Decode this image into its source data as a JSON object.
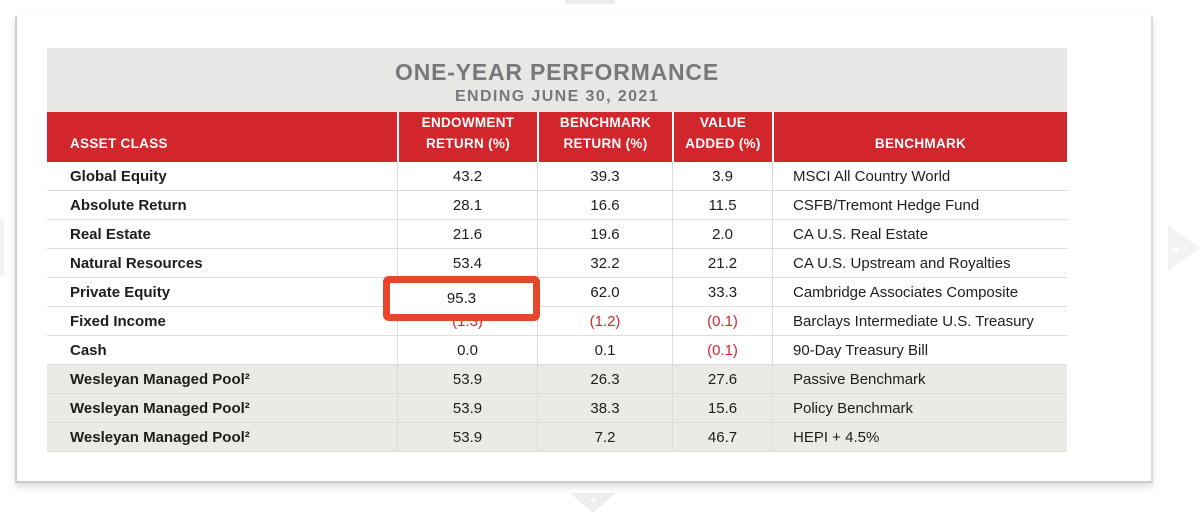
{
  "title_band": {
    "title": "ONE-YEAR PERFORMANCE",
    "subtitle": "ENDING JUNE 30, 2021"
  },
  "table": {
    "columns": [
      {
        "label": "ASSET CLASS"
      },
      {
        "line1": "ENDOWMENT",
        "line2": "RETURN (%)"
      },
      {
        "line1": "BENCHMARK",
        "line2": "RETURN (%)"
      },
      {
        "line1": "VALUE",
        "line2": "ADDED (%)"
      },
      {
        "label": "BENCHMARK"
      }
    ],
    "rows": [
      {
        "asset_class": "Global Equity",
        "endowment": "43.2",
        "benchmark_return": "39.3",
        "value_added": "3.9",
        "benchmark": "MSCI All Country World"
      },
      {
        "asset_class": "Absolute Return",
        "endowment": "28.1",
        "benchmark_return": "16.6",
        "value_added": "11.5",
        "benchmark": "CSFB/Tremont Hedge Fund"
      },
      {
        "asset_class": "Real Estate",
        "endowment": "21.6",
        "benchmark_return": "19.6",
        "value_added": "2.0",
        "benchmark": "CA U.S. Real Estate"
      },
      {
        "asset_class": "Natural Resources",
        "endowment": "53.4",
        "benchmark_return": "32.2",
        "value_added": "21.2",
        "benchmark": "CA U.S. Upstream and Royalties"
      },
      {
        "asset_class": "Private Equity",
        "endowment": "95.3",
        "benchmark_return": "62.0",
        "value_added": "33.3",
        "benchmark": "Cambridge Associates Composite"
      },
      {
        "asset_class": "Fixed Income",
        "endowment": "(1.3)",
        "benchmark_return": "(1.2)",
        "value_added": "(0.1)",
        "benchmark": "Barclays Intermediate U.S. Treasury"
      },
      {
        "asset_class": "Cash",
        "endowment": "0.0",
        "benchmark_return": "0.1",
        "value_added": "(0.1)",
        "benchmark": "90-Day Treasury Bill"
      },
      {
        "asset_class": "Wesleyan Managed Pool²",
        "endowment": "53.9",
        "benchmark_return": "26.3",
        "value_added": "27.6",
        "benchmark": "Passive Benchmark"
      },
      {
        "asset_class": "Wesleyan Managed Pool²",
        "endowment": "53.9",
        "benchmark_return": "38.3",
        "value_added": "15.6",
        "benchmark": "Policy Benchmark"
      },
      {
        "asset_class": "Wesleyan Managed Pool²",
        "endowment": "53.9",
        "benchmark_return": "7.2",
        "value_added": "46.7",
        "benchmark": "HEPI + 4.5%"
      }
    ],
    "highlight": {
      "row": "Private Equity",
      "column": "ENDOWMENT RETURN (%)"
    }
  },
  "viewer": {
    "plus_icon": "+"
  },
  "colors": {
    "header_red": "#d2262d",
    "negative_red": "#d22730",
    "highlight_border": "#e5472a",
    "title_text": "#77787b",
    "title_band_bg": "#e8e7e5",
    "pool_row_bg": "#ebeae7"
  }
}
